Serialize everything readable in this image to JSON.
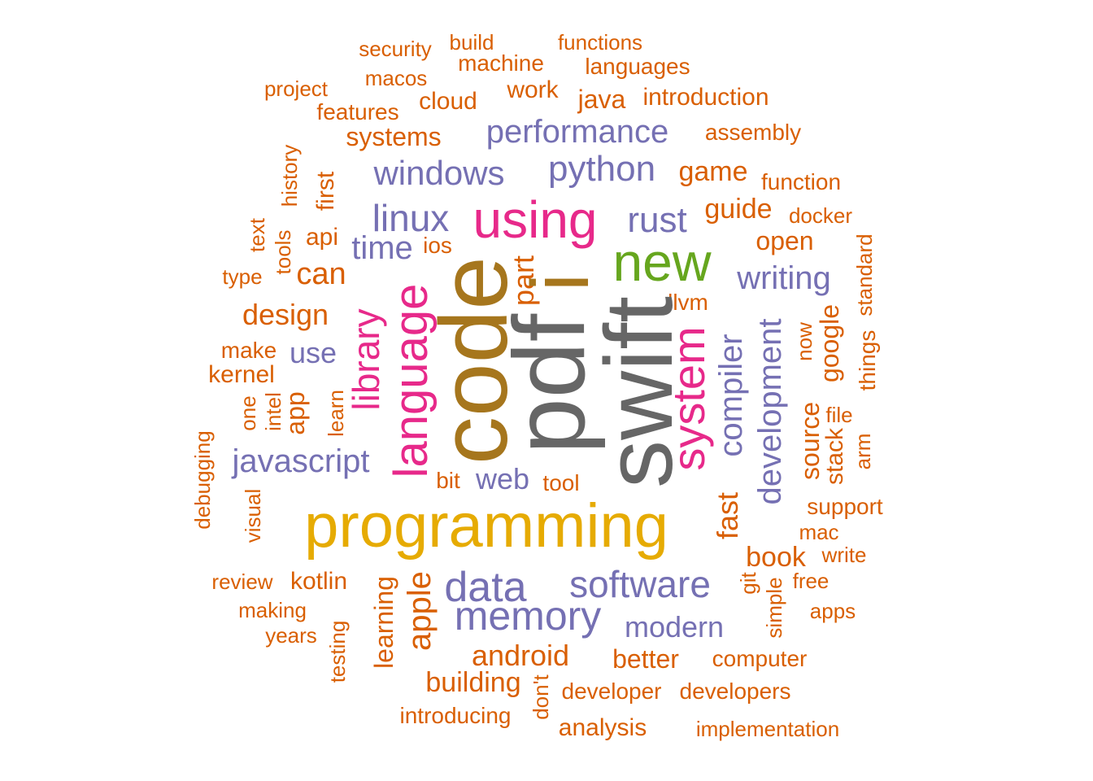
{
  "colors": {
    "orange": "#D95F02",
    "purple": "#7570B3",
    "magenta": "#E7298A",
    "green": "#66A61E",
    "gold": "#E6AB02",
    "brown": "#A6761D",
    "gray": "#666666"
  },
  "words": [
    {
      "text": "security",
      "color": "orange",
      "rotated": false
    },
    {
      "text": "build",
      "color": "orange",
      "rotated": false
    },
    {
      "text": "functions",
      "color": "orange",
      "rotated": false
    },
    {
      "text": "machine",
      "color": "orange",
      "rotated": false
    },
    {
      "text": "languages",
      "color": "orange",
      "rotated": false
    },
    {
      "text": "macos",
      "color": "orange",
      "rotated": false
    },
    {
      "text": "project",
      "color": "orange",
      "rotated": false
    },
    {
      "text": "work",
      "color": "orange",
      "rotated": false
    },
    {
      "text": "java",
      "color": "orange",
      "rotated": false
    },
    {
      "text": "introduction",
      "color": "orange",
      "rotated": false
    },
    {
      "text": "cloud",
      "color": "orange",
      "rotated": false
    },
    {
      "text": "features",
      "color": "orange",
      "rotated": false
    },
    {
      "text": "systems",
      "color": "orange",
      "rotated": false
    },
    {
      "text": "performance",
      "color": "purple",
      "rotated": false
    },
    {
      "text": "assembly",
      "color": "orange",
      "rotated": false
    },
    {
      "text": "history",
      "color": "orange",
      "rotated": true
    },
    {
      "text": "windows",
      "color": "purple",
      "rotated": false
    },
    {
      "text": "python",
      "color": "purple",
      "rotated": false
    },
    {
      "text": "game",
      "color": "orange",
      "rotated": false
    },
    {
      "text": "function",
      "color": "orange",
      "rotated": false
    },
    {
      "text": "first",
      "color": "orange",
      "rotated": true
    },
    {
      "text": "using",
      "color": "magenta",
      "rotated": false
    },
    {
      "text": "guide",
      "color": "orange",
      "rotated": false
    },
    {
      "text": "docker",
      "color": "orange",
      "rotated": false
    },
    {
      "text": "linux",
      "color": "purple",
      "rotated": false
    },
    {
      "text": "rust",
      "color": "purple",
      "rotated": false
    },
    {
      "text": "text",
      "color": "orange",
      "rotated": true
    },
    {
      "text": "api",
      "color": "orange",
      "rotated": false
    },
    {
      "text": "ios",
      "color": "orange",
      "rotated": false
    },
    {
      "text": "open",
      "color": "orange",
      "rotated": false
    },
    {
      "text": "time",
      "color": "purple",
      "rotated": false
    },
    {
      "text": "new",
      "color": "green",
      "rotated": false
    },
    {
      "text": "standard",
      "color": "orange",
      "rotated": true
    },
    {
      "text": "tools",
      "color": "orange",
      "rotated": true
    },
    {
      "text": "type",
      "color": "orange",
      "rotated": false
    },
    {
      "text": "can",
      "color": "orange",
      "rotated": false
    },
    {
      "text": "part",
      "color": "orange",
      "rotated": true
    },
    {
      "text": "i",
      "color": "brown",
      "rotated": true
    },
    {
      "text": "writing",
      "color": "purple",
      "rotated": false
    },
    {
      "text": "llvm",
      "color": "orange",
      "rotated": false
    },
    {
      "text": "design",
      "color": "orange",
      "rotated": false
    },
    {
      "text": "code",
      "color": "brown",
      "rotated": true
    },
    {
      "text": "pdf",
      "color": "gray",
      "rotated": true
    },
    {
      "text": "swift",
      "color": "gray",
      "rotated": true
    },
    {
      "text": "library",
      "color": "magenta",
      "rotated": true
    },
    {
      "text": "language",
      "color": "magenta",
      "rotated": true
    },
    {
      "text": "system",
      "color": "magenta",
      "rotated": true
    },
    {
      "text": "compiler",
      "color": "purple",
      "rotated": true
    },
    {
      "text": "development",
      "color": "purple",
      "rotated": true
    },
    {
      "text": "google",
      "color": "orange",
      "rotated": true
    },
    {
      "text": "things",
      "color": "orange",
      "rotated": true
    },
    {
      "text": "now",
      "color": "orange",
      "rotated": true
    },
    {
      "text": "make",
      "color": "orange",
      "rotated": false
    },
    {
      "text": "use",
      "color": "purple",
      "rotated": false
    },
    {
      "text": "kernel",
      "color": "orange",
      "rotated": false
    },
    {
      "text": "one",
      "color": "orange",
      "rotated": true
    },
    {
      "text": "intel",
      "color": "orange",
      "rotated": true
    },
    {
      "text": "app",
      "color": "orange",
      "rotated": true
    },
    {
      "text": "learn",
      "color": "orange",
      "rotated": true
    },
    {
      "text": "file",
      "color": "orange",
      "rotated": false
    },
    {
      "text": "source",
      "color": "orange",
      "rotated": true
    },
    {
      "text": "stack",
      "color": "orange",
      "rotated": true
    },
    {
      "text": "arm",
      "color": "orange",
      "rotated": true
    },
    {
      "text": "debugging",
      "color": "orange",
      "rotated": true
    },
    {
      "text": "javascript",
      "color": "purple",
      "rotated": false
    },
    {
      "text": "bit",
      "color": "orange",
      "rotated": false
    },
    {
      "text": "web",
      "color": "purple",
      "rotated": false
    },
    {
      "text": "tool",
      "color": "orange",
      "rotated": false
    },
    {
      "text": "fast",
      "color": "orange",
      "rotated": true
    },
    {
      "text": "visual",
      "color": "orange",
      "rotated": true
    },
    {
      "text": "programming",
      "color": "gold",
      "rotated": false
    },
    {
      "text": "support",
      "color": "orange",
      "rotated": false
    },
    {
      "text": "mac",
      "color": "orange",
      "rotated": false
    },
    {
      "text": "write",
      "color": "orange",
      "rotated": false
    },
    {
      "text": "book",
      "color": "orange",
      "rotated": false
    },
    {
      "text": "review",
      "color": "orange",
      "rotated": false
    },
    {
      "text": "kotlin",
      "color": "orange",
      "rotated": false
    },
    {
      "text": "data",
      "color": "purple",
      "rotated": false
    },
    {
      "text": "software",
      "color": "purple",
      "rotated": false
    },
    {
      "text": "git",
      "color": "orange",
      "rotated": true
    },
    {
      "text": "free",
      "color": "orange",
      "rotated": false
    },
    {
      "text": "making",
      "color": "orange",
      "rotated": false
    },
    {
      "text": "learning",
      "color": "orange",
      "rotated": true
    },
    {
      "text": "apple",
      "color": "orange",
      "rotated": true
    },
    {
      "text": "memory",
      "color": "purple",
      "rotated": false
    },
    {
      "text": "simple",
      "color": "orange",
      "rotated": true
    },
    {
      "text": "apps",
      "color": "orange",
      "rotated": false
    },
    {
      "text": "years",
      "color": "orange",
      "rotated": false
    },
    {
      "text": "testing",
      "color": "orange",
      "rotated": true
    },
    {
      "text": "modern",
      "color": "purple",
      "rotated": false
    },
    {
      "text": "android",
      "color": "orange",
      "rotated": false
    },
    {
      "text": "better",
      "color": "orange",
      "rotated": false
    },
    {
      "text": "computer",
      "color": "orange",
      "rotated": false
    },
    {
      "text": "building",
      "color": "orange",
      "rotated": false
    },
    {
      "text": "don't",
      "color": "orange",
      "rotated": true
    },
    {
      "text": "developer",
      "color": "orange",
      "rotated": false
    },
    {
      "text": "developers",
      "color": "orange",
      "rotated": false
    },
    {
      "text": "introducing",
      "color": "orange",
      "rotated": false
    },
    {
      "text": "analysis",
      "color": "orange",
      "rotated": false
    },
    {
      "text": "implementation",
      "color": "orange",
      "rotated": false
    }
  ]
}
